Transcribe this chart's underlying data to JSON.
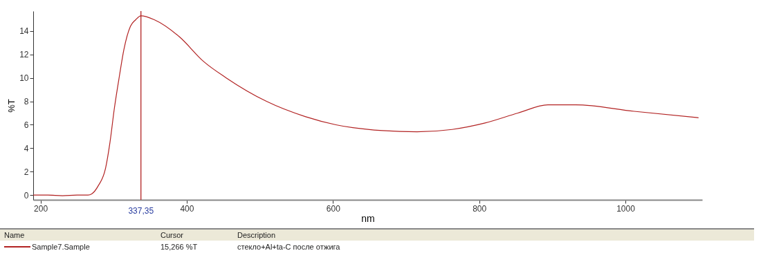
{
  "chart_data": {
    "type": "line",
    "xlabel": "nm",
    "ylabel": "%T",
    "xlim": [
      190,
      1105
    ],
    "ylim": [
      -0.4,
      15.7
    ],
    "xticks": [
      200,
      400,
      600,
      800,
      1000
    ],
    "yticks": [
      0,
      2,
      4,
      6,
      8,
      10,
      12,
      14
    ],
    "grid": false,
    "legend": "bottom",
    "series": [
      {
        "name": "Sample7.Sample",
        "color": "#b22222",
        "x": [
          190,
          210,
          230,
          250,
          265,
          270,
          279,
          289,
          295,
          301,
          308,
          314,
          323,
          330,
          337.35,
          356,
          390,
          423,
          454,
          509,
          562,
          604,
          668,
          715,
          763,
          808,
          853,
          894,
          932,
          1012,
          1100
        ],
        "values": [
          0,
          0,
          -0.05,
          0,
          0,
          0.1,
          0.8,
          2.3,
          4.5,
          7.4,
          10.2,
          12.4,
          14.4,
          14.95,
          15.3,
          14.95,
          13.5,
          11.4,
          10.0,
          8.0,
          6.7,
          6.0,
          5.5,
          5.4,
          5.6,
          6.15,
          7.0,
          7.7,
          7.7,
          7.15,
          6.6
        ]
      }
    ],
    "ref_lines": [
      {
        "axis": "x",
        "value": 337.35,
        "label": "337,35",
        "color": "#b22222"
      }
    ],
    "annotations": [
      "Name",
      "Cursor",
      "Description",
      "15,266 %T",
      "стекло+Al+ta-C после отжига"
    ]
  }
}
